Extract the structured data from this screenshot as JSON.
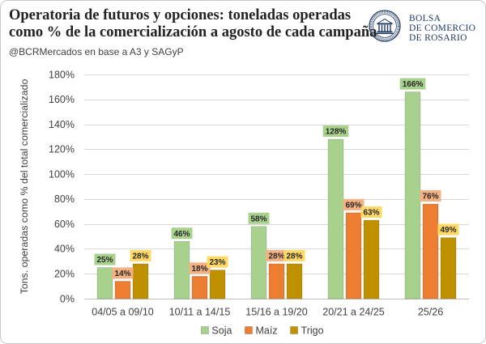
{
  "chart_data": {
    "type": "bar",
    "title": [
      "Operatoria de futuros y opciones: toneladas operadas",
      "como % de la comercialización a agosto de cada campaña"
    ],
    "subtitle": "@BCRMercados en base a A3 y SAGyP",
    "ylabel": "Tons. operadas como % del total comercializado",
    "categories": [
      "04/05 a 09/10",
      "10/11 a 14/15",
      "15/16 a 19/20",
      "20/21 a 24/25",
      "25/26"
    ],
    "series": [
      {
        "name": "Soja",
        "values": [
          25,
          46,
          58,
          128,
          166
        ],
        "labels": [
          "25%",
          "46%",
          "58%",
          "128%",
          "166%"
        ],
        "color": "#a9d18e",
        "label_color": "#a9d18e"
      },
      {
        "name": "Maíz",
        "values": [
          14,
          18,
          28,
          69,
          76
        ],
        "labels": [
          "14%",
          "18%",
          "28%",
          "69%",
          "76%"
        ],
        "color": "#ed7d31",
        "label_color": "#f4b183"
      },
      {
        "name": "Trigo",
        "values": [
          28,
          23,
          28,
          63,
          49
        ],
        "labels": [
          "28%",
          "23%",
          "28%",
          "63%",
          "49%"
        ],
        "color": "#bf9000",
        "label_color": "#ffd966"
      }
    ],
    "ylim": [
      0,
      180
    ],
    "yticks": [
      0,
      20,
      40,
      60,
      80,
      100,
      120,
      140,
      160,
      180
    ],
    "ytick_labels": [
      "0%",
      "20%",
      "40%",
      "60%",
      "80%",
      "100%",
      "120%",
      "140%",
      "160%",
      "180%"
    ],
    "grid": true,
    "legend": "bottom-center",
    "data_labels": true
  },
  "logo": {
    "icon": "bcr-emblem-icon",
    "lines": [
      "BOLSA",
      "DE COMERCIO",
      "DE ROSARIO"
    ],
    "color": "#1f3864"
  }
}
